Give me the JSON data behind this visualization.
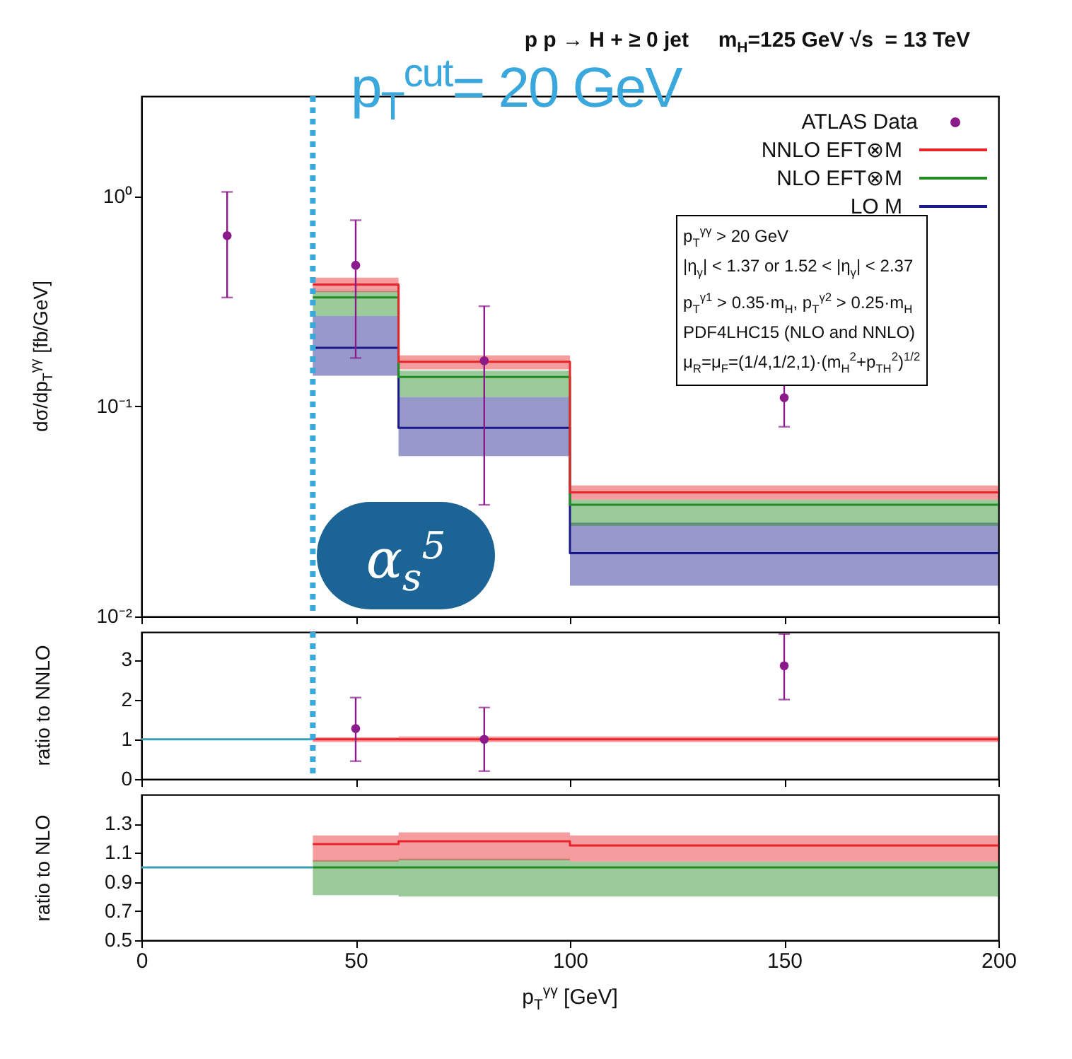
{
  "chart_data": [
    {
      "type": "step",
      "title": "p p → H + ≥ 0 jet     m$_{H}$=125 GeV √s  = 13 TeV",
      "ylabel": "dσ/dp$_{T}$$^{γγ}$ [fb/GeV]",
      "log": "y",
      "xlim": [
        0,
        200
      ],
      "xticks": [
        0,
        50,
        100,
        150,
        200
      ],
      "ylim": [
        0.01,
        3
      ],
      "yticks": [
        {
          "value": 1,
          "label": "10⁰"
        },
        {
          "value": 0.1,
          "label": "10⁻¹"
        },
        {
          "value": 0.01,
          "label": "10⁻²"
        }
      ],
      "tick_labels": "y",
      "legend": "top right",
      "series": [
        {
          "name": "ATLAS Data",
          "type": "scatter",
          "marker": "circle",
          "color": "#8b1a8b",
          "x": [
            20,
            50,
            80,
            150
          ],
          "values": [
            0.65,
            0.47,
            0.165,
            0.11
          ],
          "errors": [
            [
              0.33,
              1.05
            ],
            [
              0.17,
              0.77
            ],
            [
              0.034,
              0.3
            ],
            [
              0.08,
              0.145
            ]
          ]
        },
        {
          "name": "NNLO EFT⊗M",
          "color": "#e8242a",
          "x": [
            40,
            60,
            100,
            200
          ],
          "values": [
            0.38,
            0.163,
            0.039,
            0.039
          ],
          "lower": [
            0.35,
            0.15,
            0.036,
            0.036
          ],
          "upper": [
            0.41,
            0.175,
            0.042,
            0.042
          ]
        },
        {
          "name": "NLO EFT⊗M",
          "color": "#228b22",
          "x": [
            40,
            60,
            100,
            200
          ],
          "values": [
            0.33,
            0.138,
            0.034,
            0.034
          ],
          "lower": [
            0.27,
            0.111,
            0.027,
            0.027
          ],
          "upper": [
            0.355,
            0.148,
            0.036,
            0.036
          ]
        },
        {
          "name": "LO M",
          "color": "#1a1a8c",
          "x": [
            40,
            60,
            100,
            200
          ],
          "values": [
            0.19,
            0.079,
            0.02,
            0.02
          ],
          "lower": [
            0.14,
            0.058,
            0.014,
            0.014
          ],
          "upper": [
            0.27,
            0.111,
            0.028,
            0.028
          ]
        }
      ],
      "ref_lines": [
        {
          "axis": "x",
          "value": 40,
          "color": "#3aa8dc",
          "line_style": "dotted"
        }
      ],
      "annotations": [
        "α$_{s}$$^{5}$",
        "p$_{T}$$^{cut}$= 20 GeV",
        "p$_{T}$$^{γγ}$ > 20 GeV",
        "|η$_{γ}$| < 1.37 or 1.52 < |η$_{γ}$| < 2.37",
        "p$_{T}$$^{γ1}$ > 0.35·m$_{H}$, p$_{T}$$^{γ2}$ > 0.25·m$_{H}$",
        "PDF4LHC15 (NLO and NNLO)",
        "μ$_{R}$=μ$_{F}$=(1/4,1/2,1)·(m$_{H}$$^{2}$+p$_{TH}$$^{2}$)$^{1/2}$"
      ]
    },
    {
      "type": "step",
      "ylabel": "ratio to NNLO",
      "xlim": [
        0,
        200
      ],
      "xticks": [
        0,
        50,
        100,
        150,
        200
      ],
      "ylim": [
        0,
        3.7
      ],
      "yticks": [
        0,
        1,
        2,
        3
      ],
      "tick_labels": "y",
      "series": [
        {
          "type": "scatter",
          "marker": "circle",
          "color": "#8b1a8b",
          "x": [
            50,
            80,
            150
          ],
          "values": [
            1.27,
            1.0,
            2.85
          ],
          "errors": [
            [
              0.45,
              2.05
            ],
            [
              0.2,
              1.8
            ],
            [
              2.0,
              3.65
            ]
          ]
        },
        {
          "color": "#e8242a",
          "x": [
            40,
            60,
            100,
            200
          ],
          "values": [
            1,
            1,
            1,
            1
          ],
          "lower": [
            0.93,
            0.93,
            0.93,
            0.93
          ],
          "upper": [
            1.05,
            1.07,
            1.07,
            1.07
          ]
        },
        {
          "type": "line",
          "color": "#3a9fb0",
          "x": [
            0,
            40
          ],
          "values": [
            1,
            1
          ]
        }
      ],
      "ref_lines": [
        {
          "axis": "x",
          "value": 40,
          "color": "#3aa8dc",
          "line_style": "dotted"
        }
      ]
    },
    {
      "type": "step",
      "ylabel": "ratio to NLO",
      "xlabel": "p$_{T}$$^{γγ}$ [GeV]",
      "xlim": [
        0,
        200
      ],
      "xticks": [
        0,
        50,
        100,
        150,
        200
      ],
      "ylim": [
        0.5,
        1.5
      ],
      "yticks": [
        0.5,
        0.7,
        0.9,
        1.1,
        1.3
      ],
      "series": [
        {
          "color": "#e8242a",
          "x": [
            40,
            60,
            100,
            200
          ],
          "values": [
            1.16,
            1.18,
            1.15,
            1.15
          ],
          "lower": [
            1.04,
            1.05,
            1.04,
            1.04
          ],
          "upper": [
            1.22,
            1.24,
            1.22,
            1.22
          ]
        },
        {
          "color": "#228b22",
          "x": [
            40,
            60,
            100,
            200
          ],
          "values": [
            1.0,
            1.0,
            1.0,
            1.0
          ],
          "lower": [
            0.81,
            0.8,
            0.8,
            0.8
          ],
          "upper": [
            1.05,
            1.06,
            1.04,
            1.04
          ]
        },
        {
          "type": "line",
          "color": "#3a9fb0",
          "x": [
            0,
            40
          ],
          "values": [
            1,
            1
          ]
        }
      ]
    }
  ]
}
